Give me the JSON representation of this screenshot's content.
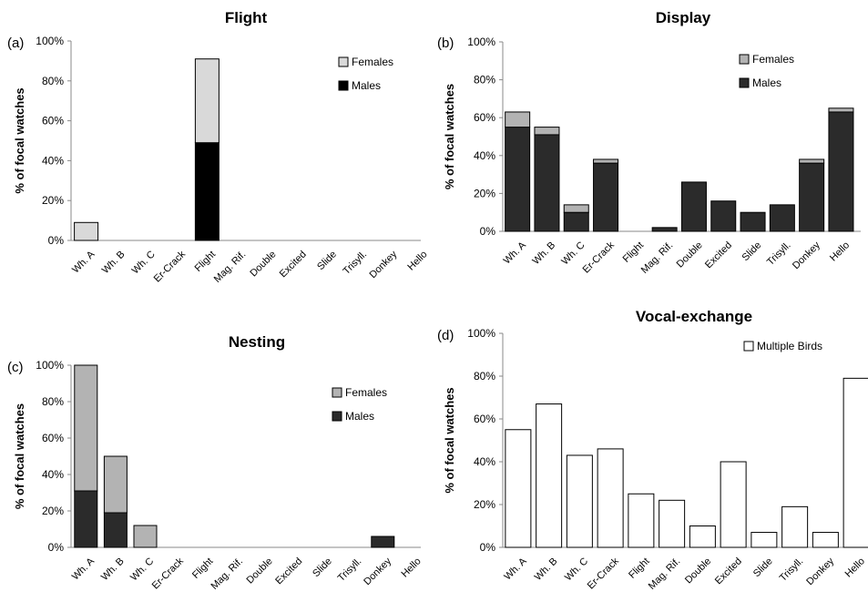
{
  "chart_data": [
    {
      "panel": "(a)",
      "type": "bar",
      "stacked": true,
      "title": "Flight",
      "ylabel": "% of focal watches",
      "ylim": [
        0,
        100
      ],
      "yticks": [
        "0%",
        "20%",
        "40%",
        "60%",
        "80%",
        "100%"
      ],
      "categories": [
        "Wh. A",
        "Wh. B",
        "Wh. C",
        "Er-Crack",
        "Flight",
        "Mag. Rif.",
        "Double",
        "Excited",
        "Slide",
        "Trisyll.",
        "Donkey",
        "Hello"
      ],
      "series": [
        {
          "name": "Males",
          "color": "#000000",
          "values": [
            0,
            0,
            0,
            0,
            49,
            0,
            0,
            0,
            0,
            0,
            0,
            0
          ]
        },
        {
          "name": "Females",
          "color": "#d9d9d9",
          "values": [
            9,
            0,
            0,
            0,
            42,
            0,
            0,
            0,
            0,
            0,
            0,
            0
          ]
        }
      ],
      "legend": [
        {
          "label": "Females",
          "color": "#d9d9d9"
        },
        {
          "label": "Males",
          "color": "#000000"
        }
      ],
      "legend_position": "top-right"
    },
    {
      "panel": "(b)",
      "type": "bar",
      "stacked": true,
      "title": "Display",
      "ylabel": "% of focal watches",
      "ylim": [
        0,
        100
      ],
      "yticks": [
        "0%",
        "20%",
        "40%",
        "60%",
        "80%",
        "100%"
      ],
      "categories": [
        "Wh. A",
        "Wh. B",
        "Wh. C",
        "Er-Crack",
        "Flight",
        "Mag. Rif.",
        "Double",
        "Excited",
        "Slide",
        "Trisyll.",
        "Donkey",
        "Hello"
      ],
      "series": [
        {
          "name": "Males",
          "color": "#2b2b2b",
          "values": [
            55,
            51,
            10,
            36,
            0,
            2,
            26,
            16,
            10,
            14,
            36,
            63
          ]
        },
        {
          "name": "Females",
          "color": "#b3b3b3",
          "values": [
            8,
            4,
            4,
            2,
            0,
            0,
            0,
            0,
            0,
            0,
            2,
            2
          ]
        }
      ],
      "legend": [
        {
          "label": "Females",
          "color": "#b3b3b3"
        },
        {
          "label": "Males",
          "color": "#2b2b2b"
        }
      ],
      "legend_position": "top-right"
    },
    {
      "panel": "(c)",
      "type": "bar",
      "stacked": true,
      "title": "Nesting",
      "ylabel": "% of focal watches",
      "ylim": [
        0,
        100
      ],
      "yticks": [
        "0%",
        "20%",
        "40%",
        "60%",
        "80%",
        "100%"
      ],
      "categories": [
        "Wh. A",
        "Wh. B",
        "Wh. C",
        "Er-Crack",
        "Flight",
        "Mag. Rif.",
        "Double",
        "Excited",
        "Slide",
        "Trisyll.",
        "Donkey",
        "Hello"
      ],
      "series": [
        {
          "name": "Males",
          "color": "#2b2b2b",
          "values": [
            31,
            19,
            0,
            0,
            0,
            0,
            0,
            0,
            0,
            0,
            6,
            0
          ]
        },
        {
          "name": "Females",
          "color": "#b3b3b3",
          "values": [
            69,
            31,
            12,
            0,
            0,
            0,
            0,
            0,
            0,
            0,
            0,
            0
          ]
        }
      ],
      "legend": [
        {
          "label": "Females",
          "color": "#b3b3b3"
        },
        {
          "label": "Males",
          "color": "#2b2b2b"
        }
      ],
      "legend_position": "top-right"
    },
    {
      "panel": "(d)",
      "type": "bar",
      "stacked": false,
      "title": "Vocal-exchange",
      "ylabel": "% of focal watches",
      "ylim": [
        0,
        100
      ],
      "yticks": [
        "0%",
        "20%",
        "40%",
        "60%",
        "80%",
        "100%"
      ],
      "categories": [
        "Wh. A",
        "Wh. B",
        "Wh. C",
        "Er-Crack",
        "Flight",
        "Mag. Rif.",
        "Double",
        "Excited",
        "Slide",
        "Trisyll.",
        "Donkey",
        "Hello"
      ],
      "series": [
        {
          "name": "Multiple Birds",
          "color": "#ffffff",
          "values": [
            55,
            67,
            43,
            46,
            25,
            22,
            10,
            40,
            7,
            19,
            7,
            79
          ]
        }
      ],
      "legend": [
        {
          "label": "Multiple Birds",
          "color": "#ffffff"
        }
      ],
      "legend_position": "top-right"
    }
  ]
}
